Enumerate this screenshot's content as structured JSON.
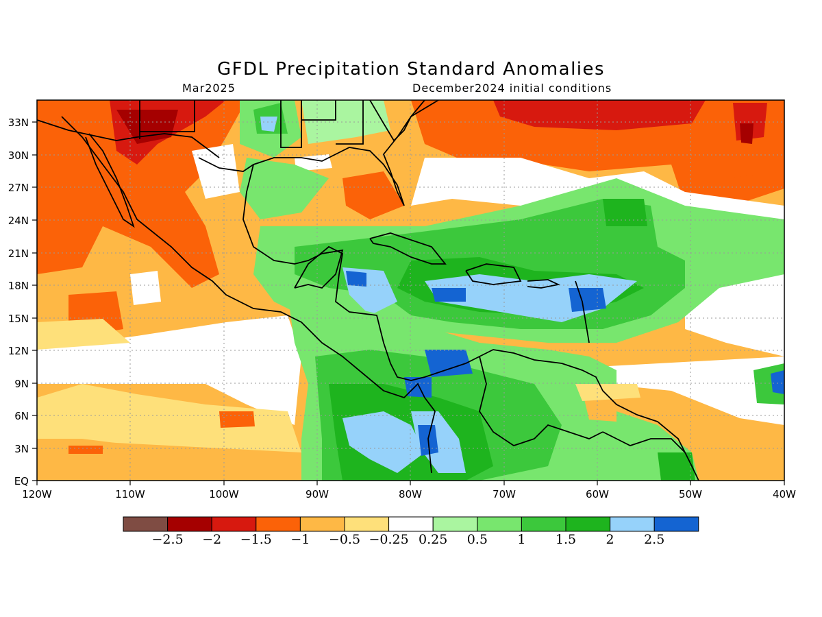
{
  "title": "GFDL Precipitation Standard Anomalies",
  "subtitle_left": "Mar2025",
  "subtitle_right": "December2024 initial conditions",
  "map": {
    "type": "map",
    "lon_range": [
      -120,
      -40
    ],
    "lat_range": [
      0,
      35
    ],
    "grid": true,
    "lat_tick_labels": [
      "EQ",
      "3N",
      "6N",
      "9N",
      "12N",
      "15N",
      "18N",
      "21N",
      "24N",
      "27N",
      "30N",
      "33N"
    ],
    "lon_tick_labels": [
      "120W",
      "110W",
      "100W",
      "90W",
      "80W",
      "70W",
      "60W",
      "50W",
      "40W"
    ]
  },
  "legend": {
    "colors": [
      "#7f4c43",
      "#a50000",
      "#d7190f",
      "#fb6208",
      "#feb845",
      "#fee07a",
      "#ffffff",
      "#aaf5a0",
      "#78e66e",
      "#3cc83c",
      "#1eb41e",
      "#96d2fa",
      "#1464d2"
    ],
    "labels": [
      "-2.5",
      "-2",
      "-1.5",
      "-1",
      "-0.5",
      "-0.25",
      "0.25",
      "0.5",
      "1",
      "1.5",
      "2",
      "2.5"
    ]
  }
}
